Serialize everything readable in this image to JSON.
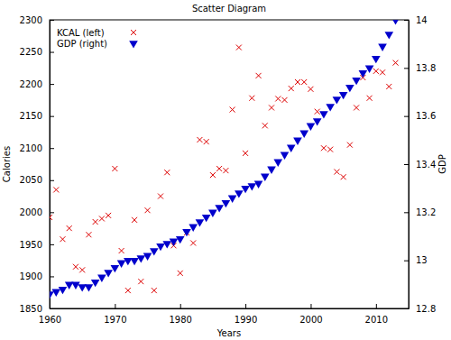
{
  "chart_data": {
    "type": "scatter",
    "title": "Scatter Diagram",
    "x_label": "Years",
    "y_label": "Calories",
    "y2_label": "GDP",
    "legend": "top-left",
    "grid": false,
    "xlim": [
      1960,
      2015
    ],
    "xticks": [
      1960,
      1970,
      1980,
      1990,
      2000,
      2010
    ],
    "ylim": [
      1850,
      2300
    ],
    "yticks": [
      1850,
      1900,
      1950,
      2000,
      2050,
      2100,
      2150,
      2200,
      2250,
      2300
    ],
    "y2lim": [
      12.8,
      14
    ],
    "y2ticks": [
      12.8,
      13,
      13.2,
      13.4,
      13.6,
      13.8,
      14
    ],
    "x": [
      1960,
      1961,
      1962,
      1963,
      1964,
      1965,
      1966,
      1967,
      1968,
      1969,
      1970,
      1971,
      1972,
      1973,
      1974,
      1975,
      1976,
      1977,
      1978,
      1979,
      1980,
      1981,
      1982,
      1983,
      1984,
      1985,
      1986,
      1987,
      1988,
      1989,
      1990,
      1991,
      1992,
      1993,
      1994,
      1995,
      1996,
      1997,
      1998,
      1999,
      2000,
      2001,
      2002,
      2003,
      2004,
      2005,
      2006,
      2007,
      2008,
      2009,
      2010,
      2011,
      2012,
      2013
    ],
    "series": [
      {
        "name": "KCAL (left)",
        "color": "#dd0000",
        "marker": "x",
        "values": [
          1992,
          2035,
          1958,
          1975,
          1915,
          1910,
          1965,
          1985,
          1990,
          1995,
          2068,
          1940,
          1878,
          1988,
          1892,
          2003,
          1878,
          2025,
          2062,
          1948,
          1905,
          1968,
          1952,
          2113,
          2110,
          2058,
          2068,
          2065,
          2160,
          2257,
          2092,
          2178,
          2213,
          2135,
          2163,
          2177,
          2175,
          2193,
          2203,
          2203,
          2192,
          2157,
          2100,
          2098,
          2063,
          2055,
          2105,
          2163,
          2210,
          2178,
          2220,
          2218,
          2196,
          2233
        ]
      },
      {
        "name": "GDP (right)",
        "color": "#0000cc",
        "marker": "triangle-down",
        "axis": "y2",
        "values": [
          12.86,
          12.87,
          12.88,
          12.9,
          12.9,
          12.89,
          12.89,
          12.91,
          12.93,
          12.95,
          12.97,
          12.99,
          13.0,
          13.0,
          13.01,
          13.02,
          13.04,
          13.06,
          13.07,
          13.08,
          13.09,
          13.12,
          13.14,
          13.16,
          13.18,
          13.2,
          13.22,
          13.24,
          13.26,
          13.28,
          13.3,
          13.31,
          13.32,
          13.35,
          13.38,
          13.41,
          13.44,
          13.47,
          13.5,
          13.53,
          13.56,
          13.58,
          13.61,
          13.64,
          13.67,
          13.69,
          13.72,
          13.75,
          13.78,
          13.8,
          13.84,
          13.89,
          13.94,
          14.0
        ]
      }
    ]
  }
}
